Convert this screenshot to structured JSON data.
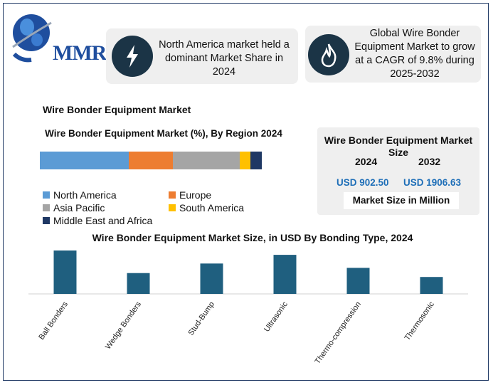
{
  "logo": {
    "text": "MMR",
    "icon": "globe-logo"
  },
  "highlights": [
    {
      "icon": "lightning-icon",
      "text": "North America market held a dominant Market Share in 2024"
    },
    {
      "icon": "flame-icon",
      "text": "Global Wire Bonder Equipment Market to grow at a CAGR of 9.8% during 2025-2032"
    }
  ],
  "section_title": "Wire Bonder Equipment Market",
  "market_size": {
    "title": "Wire Bonder Equipment Market Size",
    "year_start": "2024",
    "year_end": "2032",
    "value_start": "USD 902.50",
    "value_end": "USD 1906.63",
    "unit": "Market Size in Million"
  },
  "colors": {
    "north_america": "#5b9bd5",
    "europe": "#ed7d31",
    "asia_pacific": "#a5a5a5",
    "south_america": "#ffc000",
    "mea": "#1f3864",
    "bars": "#1f5f7f"
  },
  "chart_data": [
    {
      "type": "bar",
      "orientation": "horizontal-stacked",
      "title": "Wire Bonder Equipment Market (%), By Region 2024",
      "series": [
        {
          "name": "North America",
          "values": [
            40
          ],
          "color": "#5b9bd5"
        },
        {
          "name": "Europe",
          "values": [
            20
          ],
          "color": "#ed7d31"
        },
        {
          "name": "Asia Pacific",
          "values": [
            30
          ],
          "color": "#a5a5a5"
        },
        {
          "name": "South America",
          "values": [
            5
          ],
          "color": "#ffc000"
        },
        {
          "name": "Middle East and Africa",
          "values": [
            5
          ],
          "color": "#1f3864"
        }
      ],
      "legend": "bottom",
      "grid": false
    },
    {
      "type": "bar",
      "title": "Wire Bonder Equipment Market Size, in USD By  Bonding Type, 2024",
      "categories": [
        "Ball Bonders",
        "Wedge Bonders",
        "Stud-Bump",
        "Ultrasonic",
        "Thermo-compression",
        "Thermosonic"
      ],
      "values": [
        100,
        48,
        70,
        90,
        60,
        39
      ],
      "ylim": [
        0,
        100
      ],
      "xlabel": "",
      "ylabel": "",
      "grid": false
    }
  ]
}
